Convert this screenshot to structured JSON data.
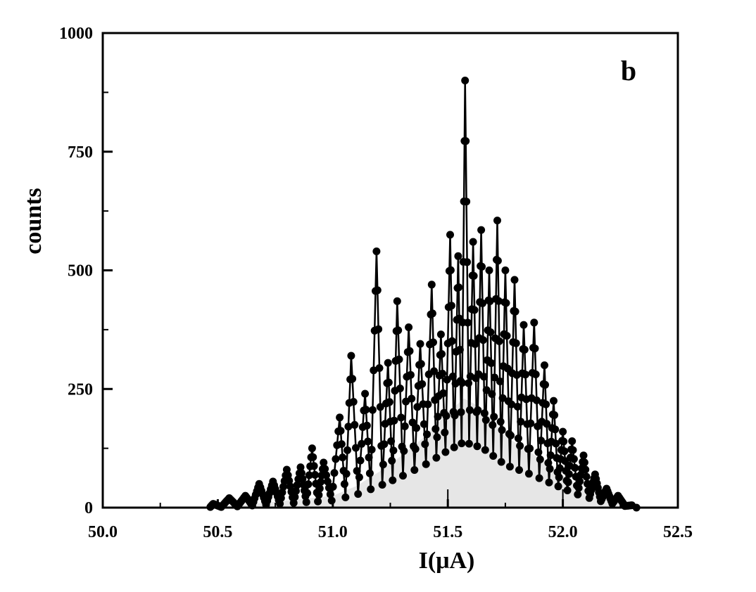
{
  "chart_data": {
    "type": "scatter",
    "panel_label": "b",
    "xlabel": "I(μA)",
    "ylabel": "counts",
    "xlim": [
      50.0,
      52.5
    ],
    "ylim": [
      0,
      1000
    ],
    "xticks": [
      {
        "value": 50.0,
        "label": "50.0"
      },
      {
        "value": 50.5,
        "label": "50.5"
      },
      {
        "value": 51.0,
        "label": "51.0"
      },
      {
        "value": 51.5,
        "label": "51.5"
      },
      {
        "value": 52.0,
        "label": "52.0"
      },
      {
        "value": 52.5,
        "label": "52.5"
      }
    ],
    "yticks": [
      {
        "value": 0,
        "label": "0"
      },
      {
        "value": 250,
        "label": "250"
      },
      {
        "value": 500,
        "label": "500"
      },
      {
        "value": 750,
        "label": "750"
      },
      {
        "value": 1000,
        "label": "1000"
      }
    ],
    "grid": false,
    "colors": {
      "points": "#000000",
      "envelope_fill": "#e6e6e6",
      "axis": "#000000"
    },
    "envelope": {
      "x": [
        50.45,
        50.6,
        50.8,
        51.0,
        51.1,
        51.2,
        51.3,
        51.4,
        51.5,
        51.57,
        51.65,
        51.75,
        51.85,
        51.95,
        52.05,
        52.15,
        52.25,
        52.32
      ],
      "y": [
        0,
        5,
        15,
        25,
        45,
        75,
        110,
        150,
        200,
        230,
        210,
        150,
        120,
        85,
        50,
        25,
        8,
        0
      ]
    },
    "peaks": [
      {
        "x": 50.48,
        "y": 8
      },
      {
        "x": 50.55,
        "y": 20
      },
      {
        "x": 50.62,
        "y": 25
      },
      {
        "x": 50.68,
        "y": 50
      },
      {
        "x": 50.74,
        "y": 55
      },
      {
        "x": 50.8,
        "y": 80
      },
      {
        "x": 50.86,
        "y": 85
      },
      {
        "x": 50.91,
        "y": 125
      },
      {
        "x": 50.96,
        "y": 95
      },
      {
        "x": 51.03,
        "y": 190
      },
      {
        "x": 51.08,
        "y": 320
      },
      {
        "x": 51.14,
        "y": 240
      },
      {
        "x": 51.19,
        "y": 540
      },
      {
        "x": 51.24,
        "y": 305
      },
      {
        "x": 51.28,
        "y": 435
      },
      {
        "x": 51.33,
        "y": 380
      },
      {
        "x": 51.38,
        "y": 345
      },
      {
        "x": 51.43,
        "y": 470
      },
      {
        "x": 51.47,
        "y": 365
      },
      {
        "x": 51.51,
        "y": 575
      },
      {
        "x": 51.545,
        "y": 530
      },
      {
        "x": 51.575,
        "y": 900
      },
      {
        "x": 51.61,
        "y": 560
      },
      {
        "x": 51.645,
        "y": 585
      },
      {
        "x": 51.68,
        "y": 500
      },
      {
        "x": 51.715,
        "y": 605
      },
      {
        "x": 51.75,
        "y": 500
      },
      {
        "x": 51.79,
        "y": 480
      },
      {
        "x": 51.83,
        "y": 385
      },
      {
        "x": 51.875,
        "y": 390
      },
      {
        "x": 51.92,
        "y": 300
      },
      {
        "x": 51.96,
        "y": 225
      },
      {
        "x": 52.0,
        "y": 160
      },
      {
        "x": 52.04,
        "y": 140
      },
      {
        "x": 52.09,
        "y": 110
      },
      {
        "x": 52.14,
        "y": 70
      },
      {
        "x": 52.19,
        "y": 40
      },
      {
        "x": 52.24,
        "y": 25
      },
      {
        "x": 52.3,
        "y": 5
      }
    ],
    "reference_marks": [
      51.5,
      52.0
    ]
  }
}
